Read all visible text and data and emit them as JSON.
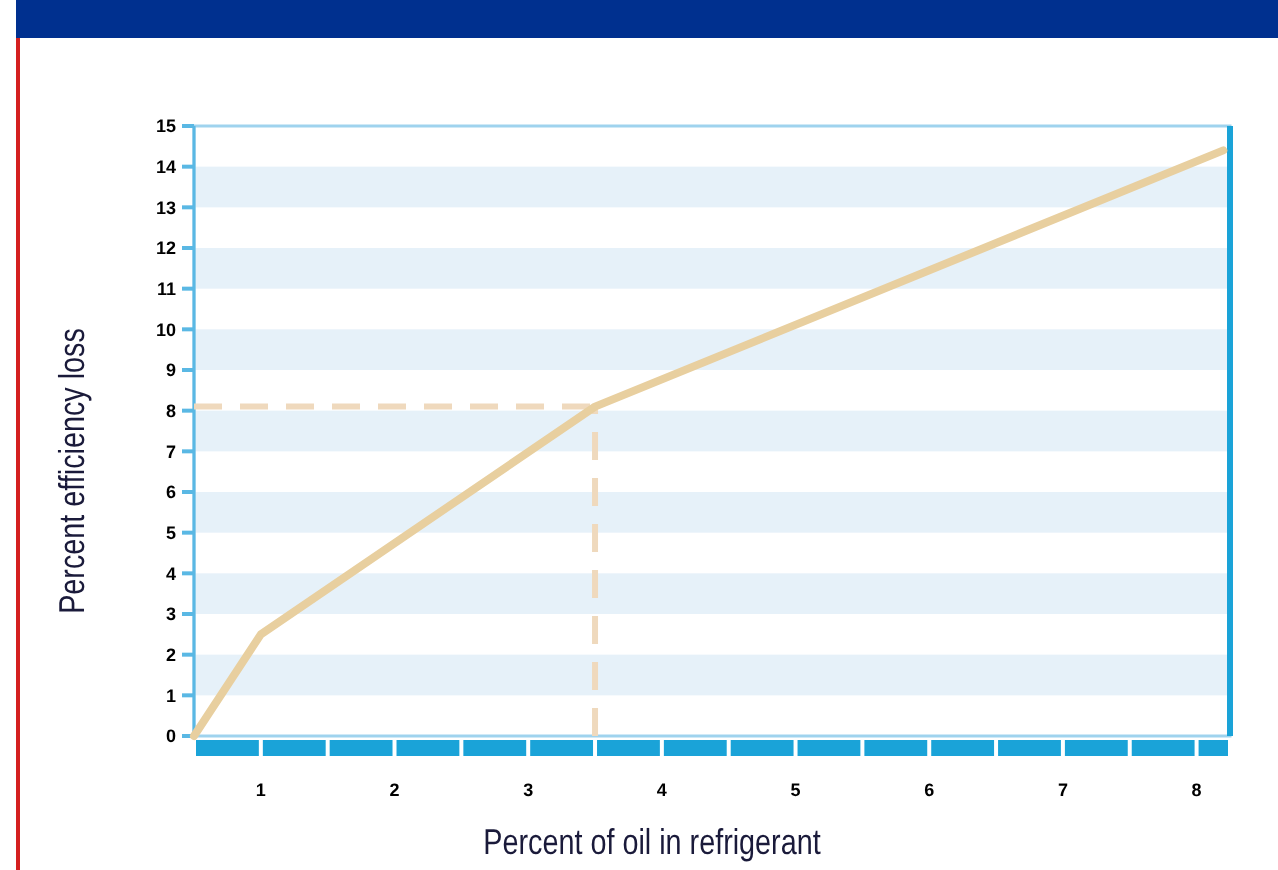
{
  "chart_data": {
    "type": "line",
    "xlabel": "Percent of oil in refrigerant",
    "ylabel": "Percent efficiency loss",
    "series": [
      {
        "color": "#e8cf9f",
        "x": [
          0.5,
          1,
          3.5,
          8.2
        ],
        "values": [
          0,
          2.5,
          8.1,
          14.4
        ]
      }
    ],
    "xlim": [
      0.5,
      8.25
    ],
    "xticks": [
      1,
      2,
      3,
      4,
      5,
      6,
      7,
      8
    ],
    "ylim": [
      0,
      15
    ],
    "yticks": [
      0,
      1,
      2,
      3,
      4,
      5,
      6,
      7,
      8,
      9,
      10,
      11,
      12,
      13,
      14,
      15
    ],
    "marker": "none",
    "line_style": "solid",
    "ref_lines": [
      {
        "axis": "x",
        "value": 3.5,
        "color": "#efd9bd",
        "line_style": "dashed"
      },
      {
        "axis": "y",
        "value": 8.1,
        "color": "#efd9bd",
        "line_style": "dashed"
      }
    ]
  }
}
